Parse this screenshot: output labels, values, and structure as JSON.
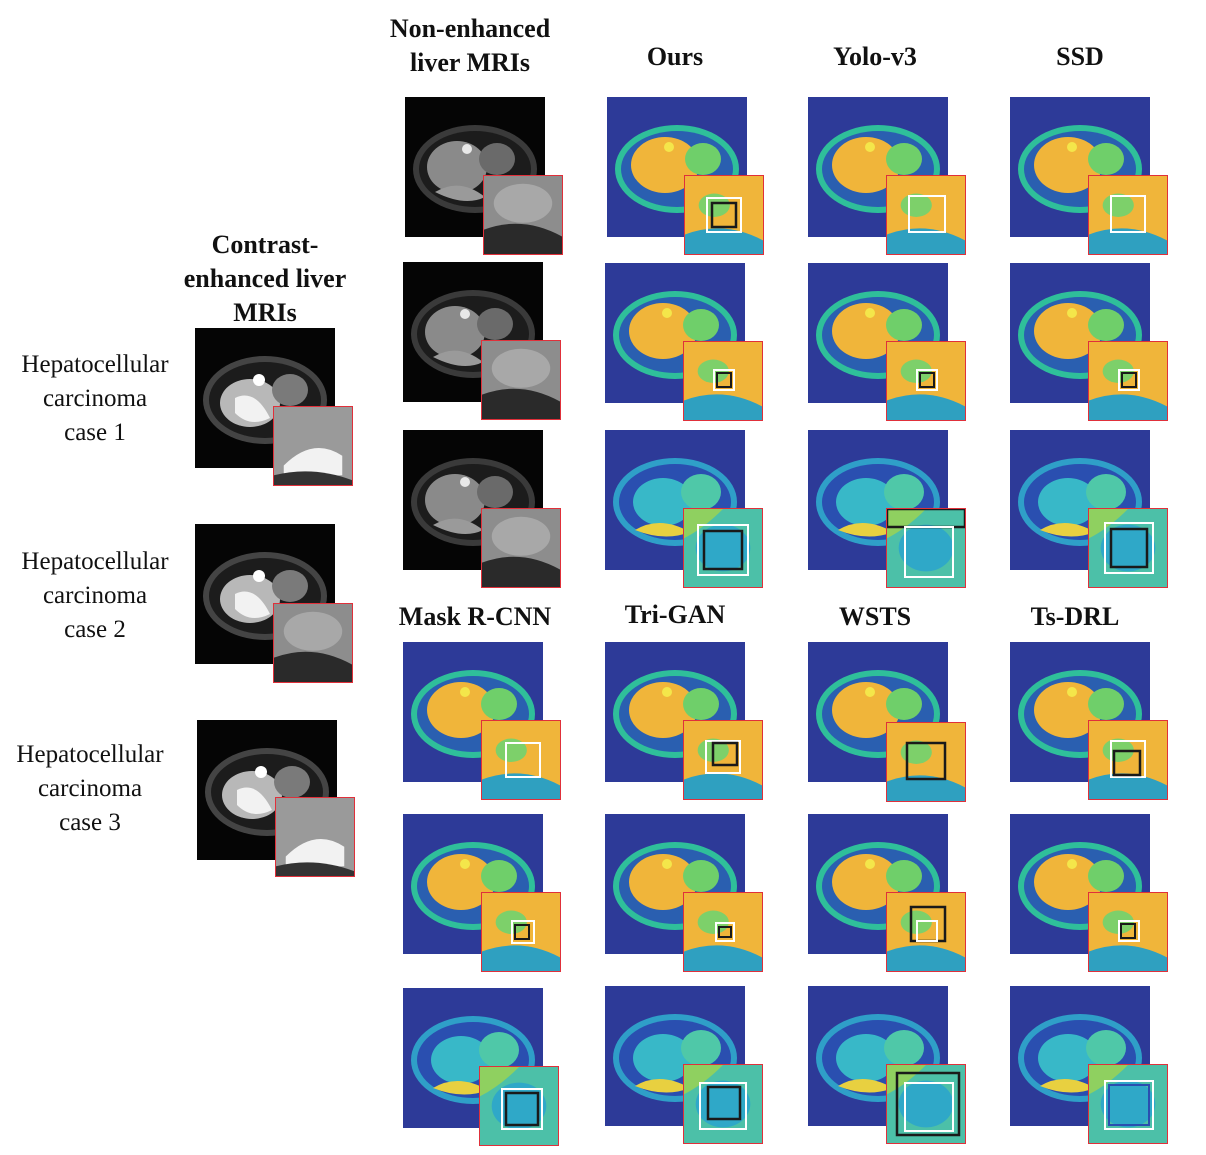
{
  "headers": {
    "left": "Contrast-\nenhanced liver\nMRIs",
    "input": "Non-enhanced\nliver MRIs",
    "ours": "Ours",
    "yolo": "Yolo-v3",
    "ssd": "SSD",
    "maskrcnn": "Mask R-CNN",
    "trigan": "Tri-GAN",
    "wsts": "WSTS",
    "tsdrl": "Ts-DRL"
  },
  "cases": [
    "Hepatocellular\ncarcinoma\ncase 1",
    "Hepatocellular\ncarcinoma\ncase 2",
    "Hepatocellular\ncarcinoma\ncase 3"
  ],
  "colors": {
    "heat_background": "#2d3a98",
    "heat_liver": "#f0b53a",
    "heat_tissue": "#2fbf9a",
    "zoom_border": "#e0303a",
    "box_white": "#ffffff",
    "box_dark": "#1a1a1a"
  }
}
